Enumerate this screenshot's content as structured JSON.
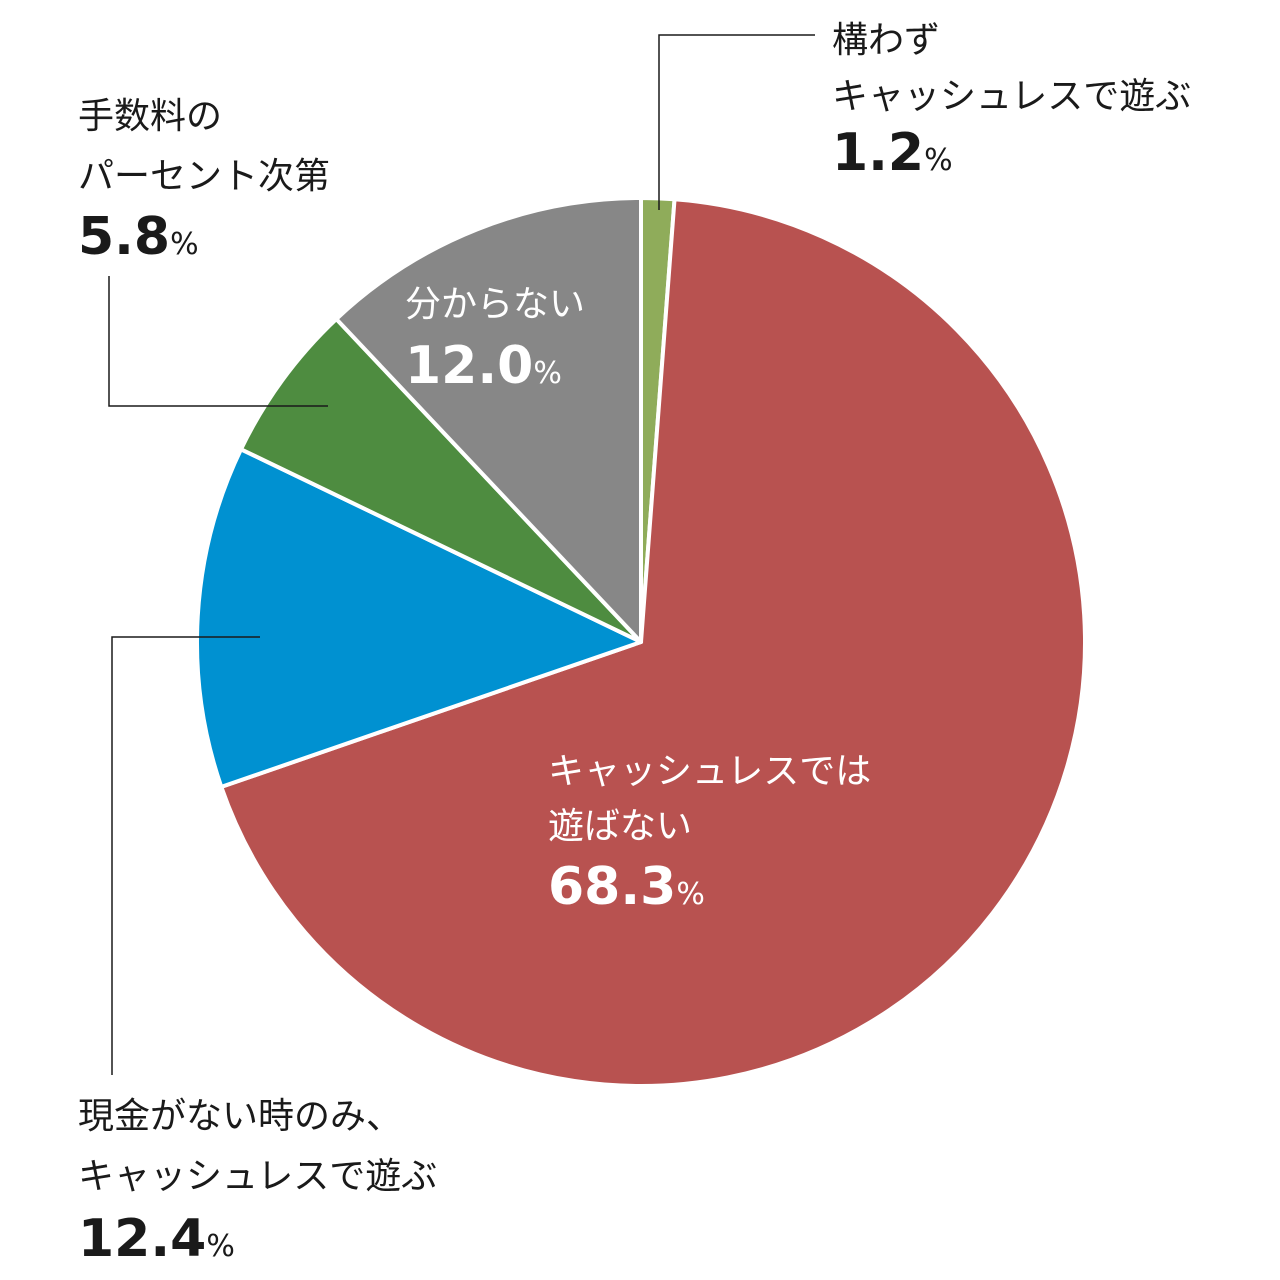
{
  "chart_data": {
    "type": "pie",
    "unit": "%",
    "slices": [
      {
        "id": "s1",
        "label_lines": [
          "構わず",
          "キャッシュレスで遊ぶ"
        ],
        "value": 1.2,
        "value_text": "1.2",
        "color": "#8fac5a"
      },
      {
        "id": "s2",
        "label_lines": [
          "キャッシュレスでは",
          "遊ばない"
        ],
        "value": 68.3,
        "value_text": "68.3",
        "color": "#b85250"
      },
      {
        "id": "s3",
        "label_lines": [
          "現金がない時のみ、",
          "キャッシュレスで遊ぶ"
        ],
        "value": 12.4,
        "value_text": "12.4",
        "color": "#0091d1"
      },
      {
        "id": "s4",
        "label_lines": [
          "手数料の",
          "パーセント次第"
        ],
        "value": 5.8,
        "value_text": "5.8",
        "color": "#4e8c40"
      },
      {
        "id": "s5",
        "label_lines": [
          "分からない"
        ],
        "value": 12.0,
        "value_text": "12.0",
        "color": "#878787"
      }
    ]
  }
}
